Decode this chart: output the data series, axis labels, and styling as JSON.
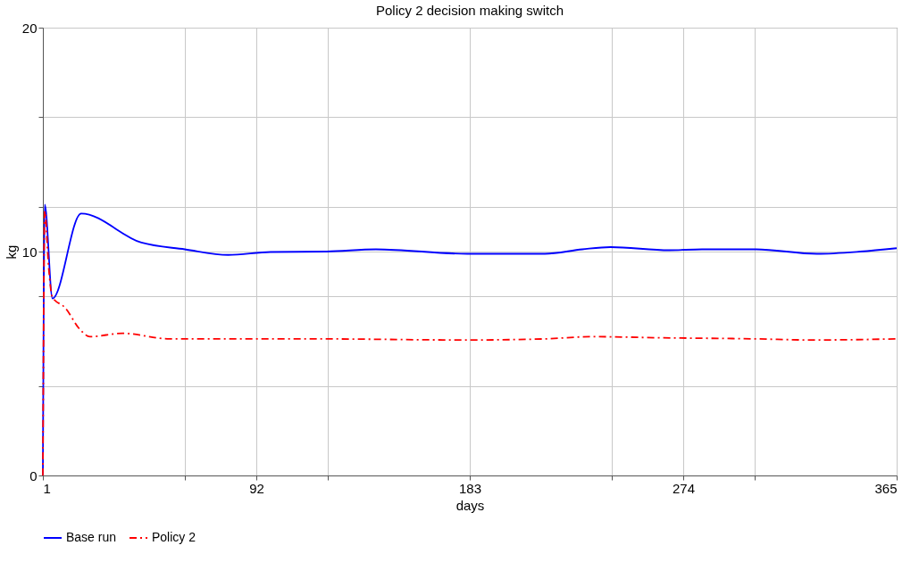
{
  "chart_data": {
    "type": "line",
    "title": "Policy 2 decision making switch",
    "xlabel": "days",
    "ylabel": "kg",
    "xlim": [
      1,
      365
    ],
    "xticks": [
      1,
      {
        "value": 61.67,
        "label": null
      },
      92,
      {
        "value": 122.33,
        "label": null
      },
      183,
      {
        "value": 243.67,
        "label": null
      },
      274,
      {
        "value": 304.33,
        "label": null
      },
      365
    ],
    "ylim": [
      0,
      20
    ],
    "yticks": [
      0,
      {
        "value": 4,
        "label": null
      },
      {
        "value": 8,
        "label": null
      },
      10,
      {
        "value": 12,
        "label": null
      },
      {
        "value": 16,
        "label": null
      },
      20
    ],
    "grid": true,
    "legend": "bottom",
    "series": [
      {
        "name": "Base run",
        "color": "#0000ff",
        "line_style": "solid",
        "x": [
          1,
          1.8,
          5.1,
          17.3,
          43,
          61.5,
          80,
          98,
          122,
          143,
          182,
          215,
          231,
          243,
          268,
          282,
          305,
          331,
          349.5,
          365
        ],
        "values": [
          0,
          12.1,
          7.9,
          11.7,
          10.4,
          10.1,
          9.85,
          9.98,
          10.0,
          10.1,
          9.9,
          9.9,
          10.1,
          10.2,
          10.06,
          10.1,
          10.1,
          9.9,
          10.0,
          10.15
        ]
      },
      {
        "name": "Policy 2",
        "color": "#ff0000",
        "line_style": "dashed",
        "x": [
          1,
          1.8,
          3.5,
          5,
          10.4,
          17,
          21,
          35,
          55,
          80,
          117,
          182,
          215,
          235,
          264,
          305,
          329,
          365
        ],
        "values": [
          0,
          11.8,
          9.25,
          7.97,
          7.5,
          6.5,
          6.2,
          6.35,
          6.1,
          6.1,
          6.1,
          6.05,
          6.1,
          6.2,
          6.15,
          6.1,
          6.05,
          6.1
        ]
      }
    ]
  }
}
